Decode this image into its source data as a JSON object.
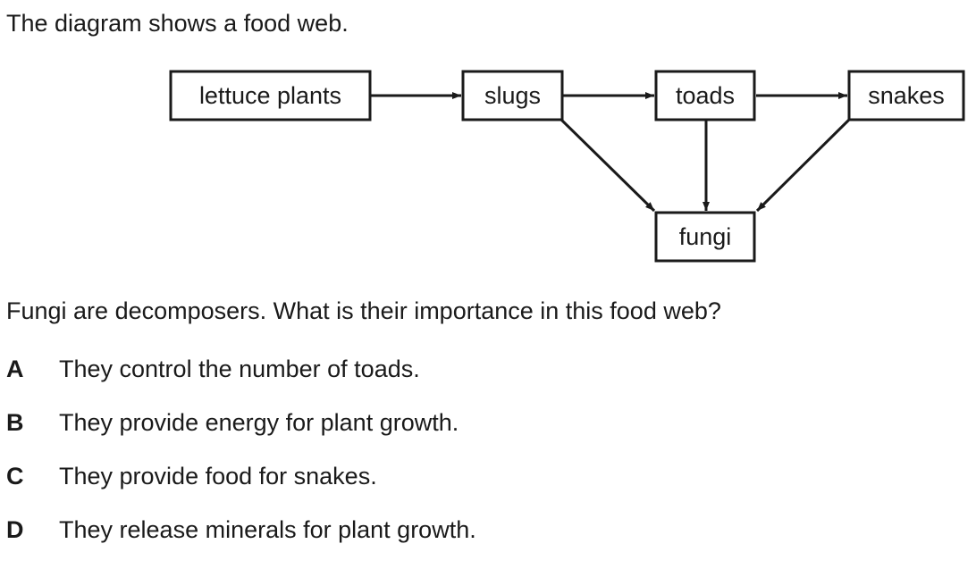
{
  "intro": "The diagram shows a food web.",
  "food_web": {
    "nodes": {
      "lettuce": "lettuce plants",
      "slugs": "slugs",
      "toads": "toads",
      "snakes": "snakes",
      "fungi": "fungi"
    },
    "edges": [
      [
        "lettuce",
        "slugs"
      ],
      [
        "slugs",
        "toads"
      ],
      [
        "toads",
        "snakes"
      ],
      [
        "slugs",
        "fungi"
      ],
      [
        "toads",
        "fungi"
      ],
      [
        "snakes",
        "fungi"
      ]
    ]
  },
  "question": "Fungi are decomposers. What is their importance in this food web?",
  "options": [
    {
      "letter": "A",
      "text": "They control the number of toads."
    },
    {
      "letter": "B",
      "text": "They provide energy for plant growth."
    },
    {
      "letter": "C",
      "text": "They provide food for snakes."
    },
    {
      "letter": "D",
      "text": "They release minerals for plant growth."
    }
  ]
}
